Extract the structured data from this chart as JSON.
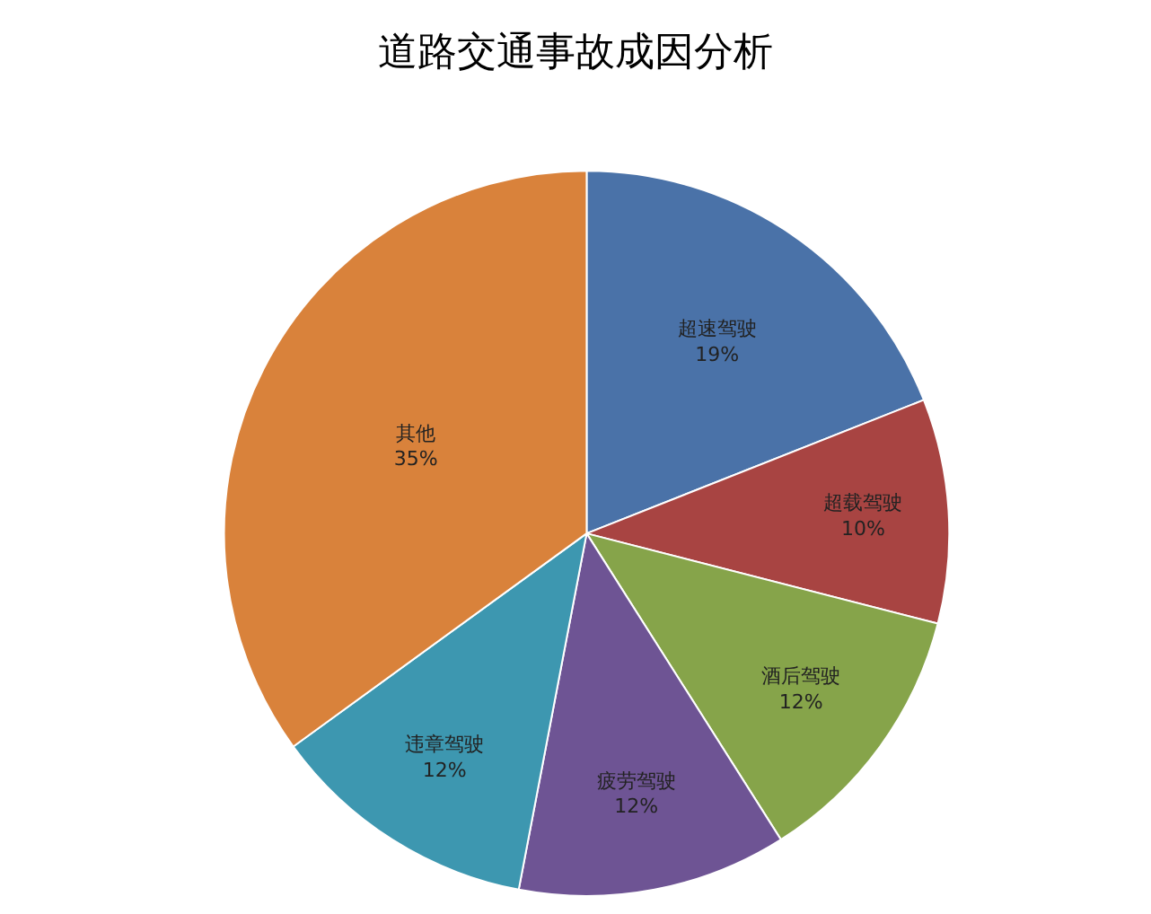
{
  "chart_data": {
    "type": "pie",
    "title": "道路交通事故成因分析",
    "categories": [
      "超速驾驶",
      "超载驾驶",
      "酒后驾驶",
      "疲劳驾驶",
      "违章驾驶",
      "其他"
    ],
    "values": [
      19,
      10,
      12,
      12,
      12,
      35
    ],
    "value_labels": [
      "19%",
      "10%",
      "12%",
      "12%",
      "12%",
      "35%"
    ],
    "colors": [
      "#4a72a8",
      "#a84442",
      "#86a44a",
      "#6e5494",
      "#3d97b0",
      "#d9823b"
    ],
    "legend": false
  }
}
